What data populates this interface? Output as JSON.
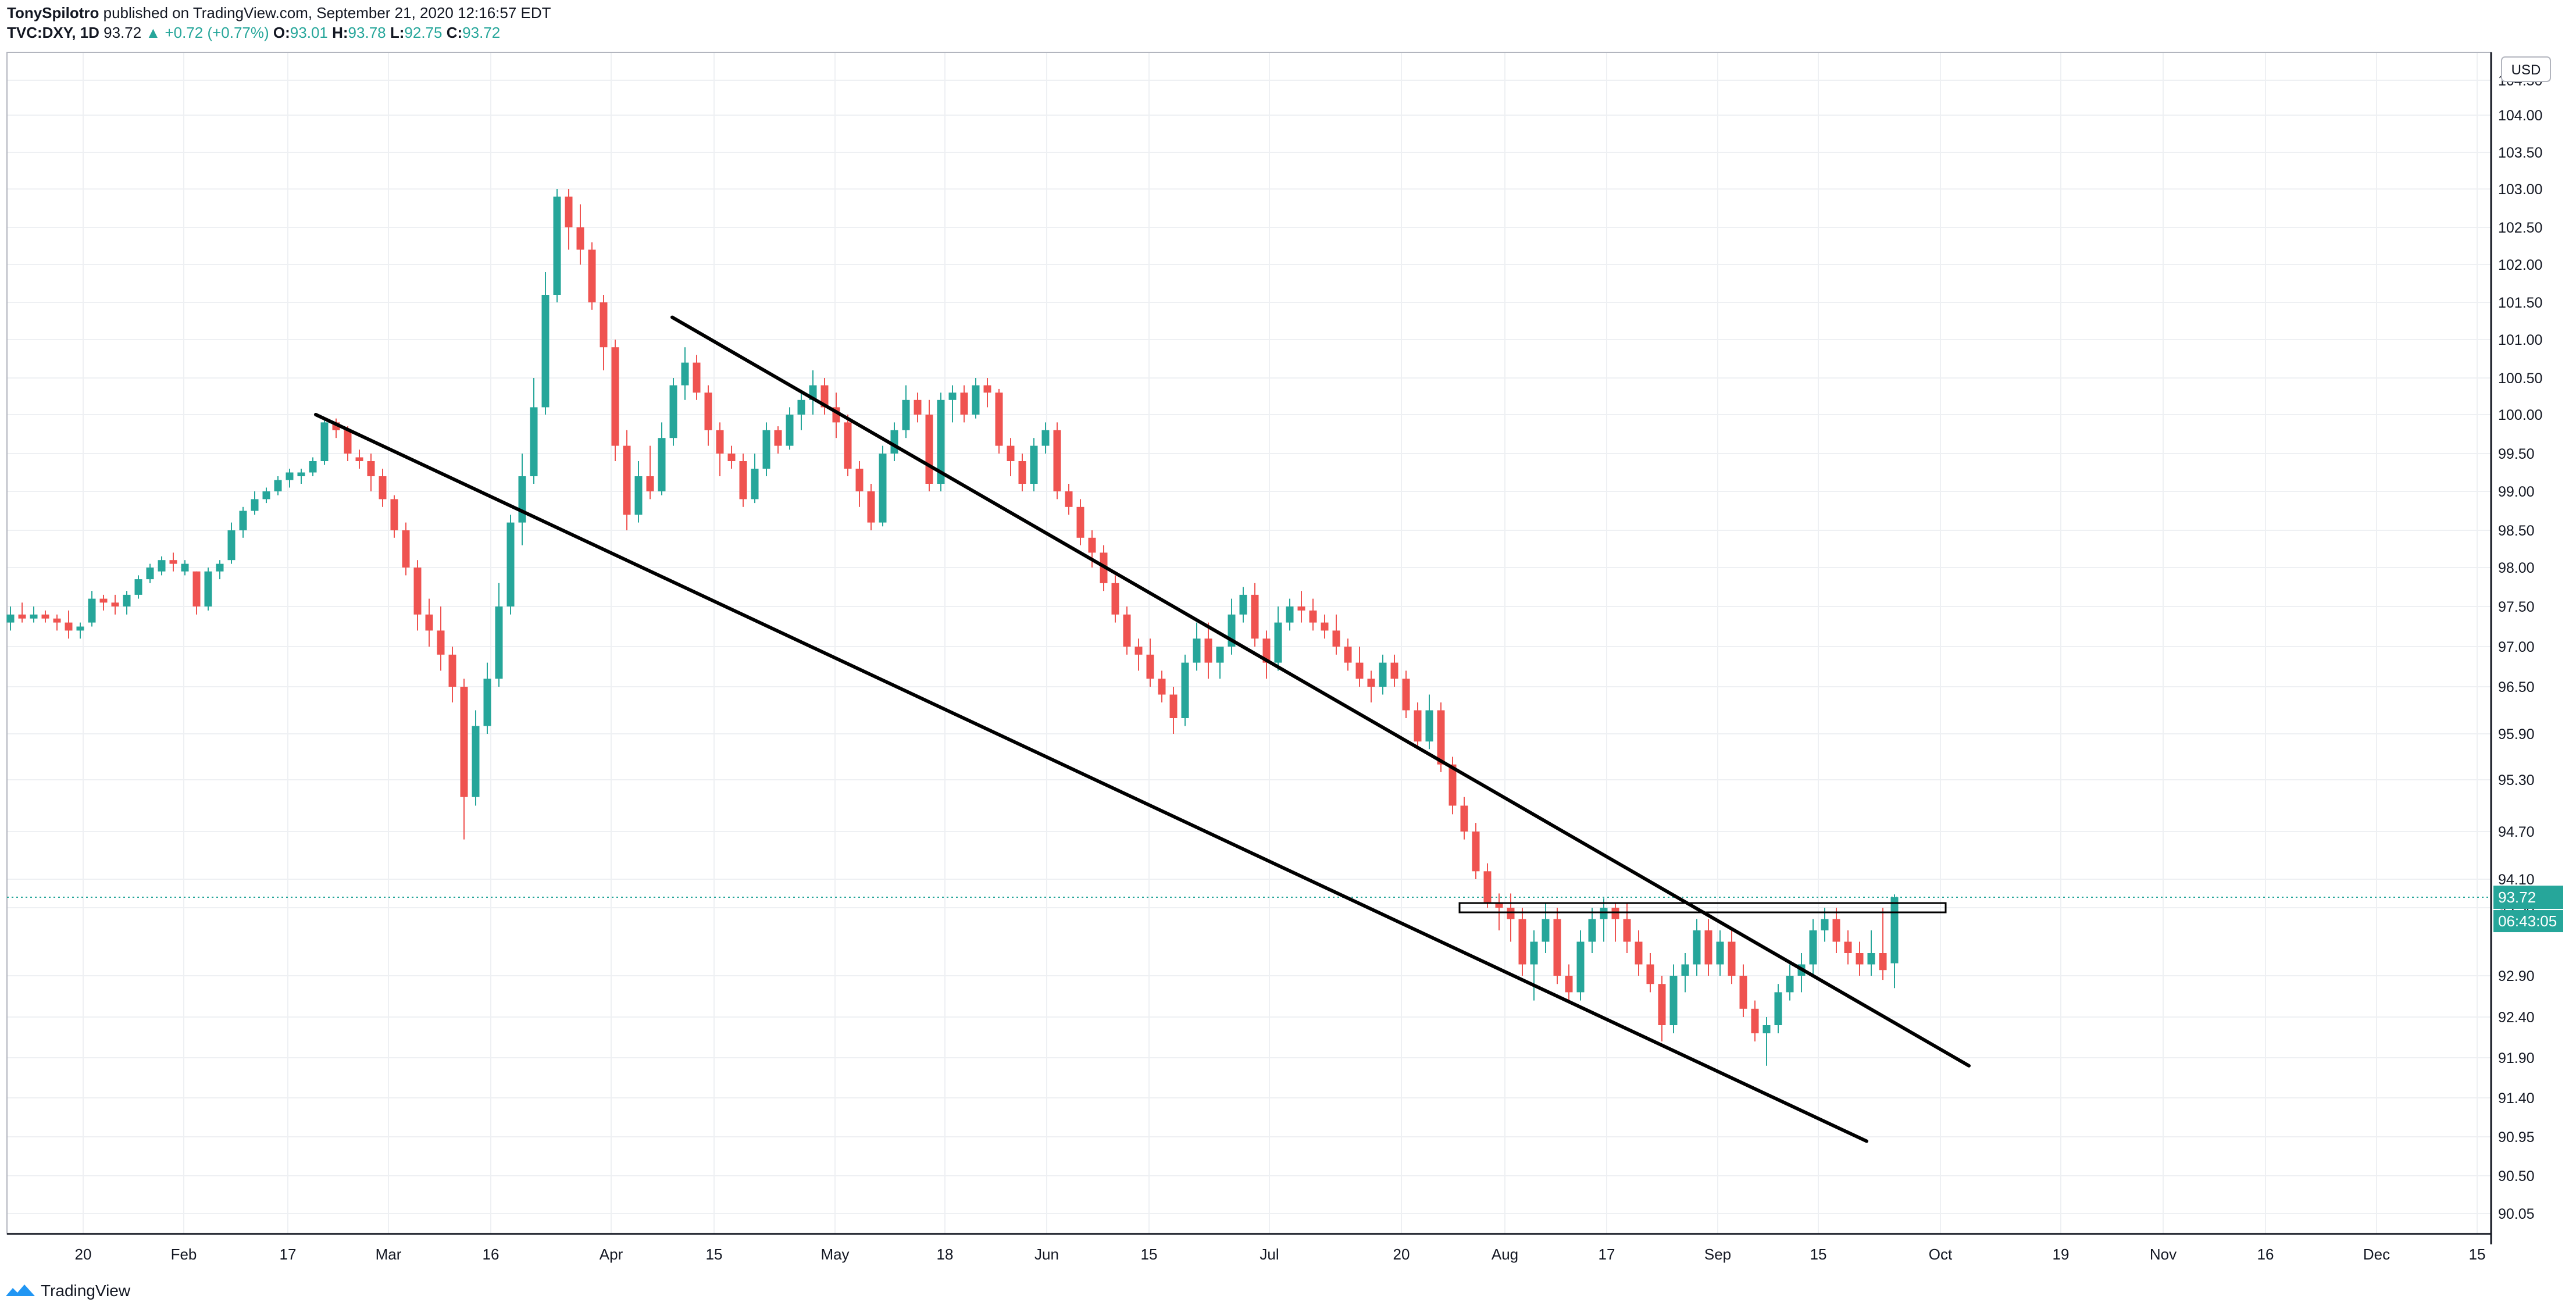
{
  "header": {
    "publisher": "TonySpilotro",
    "published_text": "published on TradingView.com, September 21, 2020 12:16:57 EDT",
    "symbol": "TVC:DXY, 1D",
    "last": "93.72",
    "change": "+0.72 (+0.77%)",
    "o_label": "O:",
    "o_val": "93.01",
    "h_label": "H:",
    "h_val": "93.78",
    "l_label": "L:",
    "l_val": "92.75",
    "c_label": "C:",
    "c_val": "93.72"
  },
  "footer": {
    "brand": "TradingView"
  },
  "colors": {
    "up": "#26a69a",
    "down": "#ef5350",
    "grid": "#eef0f3",
    "line": "#000000",
    "text": "#131722"
  },
  "chart_data": {
    "type": "candlestick",
    "symbol": "TVC:DXY",
    "interval": "1D",
    "currency_label": "USD",
    "last_price_label": "93.72",
    "countdown_label": "06:43:05",
    "y_ticks": [
      "104.50",
      "104.00",
      "103.50",
      "103.00",
      "102.50",
      "102.00",
      "101.50",
      "101.00",
      "100.50",
      "100.00",
      "99.50",
      "99.00",
      "98.50",
      "98.00",
      "97.50",
      "97.00",
      "96.50",
      "95.90",
      "95.30",
      "94.70",
      "94.10",
      "93.50",
      "92.90",
      "92.40",
      "91.90",
      "91.40",
      "90.95",
      "90.50",
      "90.05"
    ],
    "x_ticks": [
      "20",
      "Feb",
      "17",
      "Mar",
      "16",
      "Apr",
      "15",
      "May",
      "18",
      "Jun",
      "15",
      "Jul",
      "20",
      "Aug",
      "17",
      "Sep",
      "15",
      "Oct",
      "19",
      "Nov",
      "16",
      "Dec",
      "15"
    ],
    "x_start_date": "2020-01-07",
    "x_end_date": "2020-12-15",
    "candles": [
      [
        97.3,
        97.5,
        97.2,
        97.4
      ],
      [
        97.4,
        97.55,
        97.3,
        97.35
      ],
      [
        97.35,
        97.5,
        97.3,
        97.4
      ],
      [
        97.4,
        97.45,
        97.3,
        97.35
      ],
      [
        97.35,
        97.4,
        97.2,
        97.3
      ],
      [
        97.3,
        97.45,
        97.1,
        97.2
      ],
      [
        97.2,
        97.3,
        97.1,
        97.25
      ],
      [
        97.3,
        97.7,
        97.25,
        97.6
      ],
      [
        97.6,
        97.65,
        97.45,
        97.55
      ],
      [
        97.55,
        97.65,
        97.4,
        97.5
      ],
      [
        97.5,
        97.7,
        97.4,
        97.65
      ],
      [
        97.65,
        97.9,
        97.6,
        97.85
      ],
      [
        97.85,
        98.05,
        97.8,
        98.0
      ],
      [
        97.95,
        98.15,
        97.9,
        98.1
      ],
      [
        98.1,
        98.2,
        97.95,
        98.05
      ],
      [
        97.95,
        98.1,
        97.9,
        98.05
      ],
      [
        97.95,
        97.95,
        97.4,
        97.5
      ],
      [
        97.5,
        98.0,
        97.45,
        97.95
      ],
      [
        97.95,
        98.1,
        97.85,
        98.05
      ],
      [
        98.1,
        98.6,
        98.05,
        98.5
      ],
      [
        98.5,
        98.8,
        98.4,
        98.75
      ],
      [
        98.75,
        99.0,
        98.7,
        98.9
      ],
      [
        98.9,
        99.05,
        98.85,
        99.0
      ],
      [
        99.0,
        99.2,
        98.95,
        99.15
      ],
      [
        99.15,
        99.3,
        99.05,
        99.25
      ],
      [
        99.2,
        99.3,
        99.1,
        99.25
      ],
      [
        99.25,
        99.45,
        99.2,
        99.4
      ],
      [
        99.4,
        99.95,
        99.35,
        99.9
      ],
      [
        99.9,
        99.95,
        99.7,
        99.8
      ],
      [
        99.8,
        99.85,
        99.4,
        99.5
      ],
      [
        99.45,
        99.55,
        99.3,
        99.4
      ],
      [
        99.4,
        99.5,
        99.0,
        99.2
      ],
      [
        99.2,
        99.3,
        98.8,
        98.9
      ],
      [
        98.9,
        98.95,
        98.4,
        98.5
      ],
      [
        98.5,
        98.6,
        97.9,
        98.0
      ],
      [
        98.0,
        98.1,
        97.2,
        97.4
      ],
      [
        97.4,
        97.6,
        97.0,
        97.2
      ],
      [
        97.2,
        97.5,
        96.7,
        96.9
      ],
      [
        96.9,
        97.0,
        96.3,
        96.5
      ],
      [
        96.5,
        96.6,
        94.6,
        95.1
      ],
      [
        95.1,
        96.2,
        95.0,
        96.0
      ],
      [
        96.0,
        96.8,
        95.9,
        96.6
      ],
      [
        96.6,
        97.8,
        96.5,
        97.5
      ],
      [
        97.5,
        98.7,
        97.4,
        98.6
      ],
      [
        98.6,
        99.5,
        98.3,
        99.2
      ],
      [
        99.2,
        100.5,
        99.1,
        100.1
      ],
      [
        100.1,
        101.9,
        100.0,
        101.6
      ],
      [
        101.6,
        103.0,
        101.5,
        102.9
      ],
      [
        102.9,
        103.0,
        102.2,
        102.5
      ],
      [
        102.5,
        102.8,
        102.0,
        102.2
      ],
      [
        102.2,
        102.3,
        101.4,
        101.5
      ],
      [
        101.5,
        101.6,
        100.6,
        100.9
      ],
      [
        100.9,
        101.0,
        99.4,
        99.6
      ],
      [
        99.6,
        99.8,
        98.5,
        98.7
      ],
      [
        98.7,
        99.4,
        98.6,
        99.2
      ],
      [
        99.2,
        99.6,
        98.9,
        99.0
      ],
      [
        99.0,
        99.9,
        98.95,
        99.7
      ],
      [
        99.7,
        100.5,
        99.6,
        100.4
      ],
      [
        100.4,
        100.9,
        100.2,
        100.7
      ],
      [
        100.7,
        100.8,
        100.2,
        100.3
      ],
      [
        100.3,
        100.4,
        99.6,
        99.8
      ],
      [
        99.8,
        99.9,
        99.2,
        99.5
      ],
      [
        99.5,
        99.6,
        99.3,
        99.4
      ],
      [
        99.4,
        99.5,
        98.8,
        98.9
      ],
      [
        98.9,
        99.5,
        98.85,
        99.3
      ],
      [
        99.3,
        99.9,
        99.2,
        99.8
      ],
      [
        99.8,
        99.85,
        99.5,
        99.6
      ],
      [
        99.6,
        100.1,
        99.55,
        100.0
      ],
      [
        100.0,
        100.3,
        99.8,
        100.2
      ],
      [
        100.2,
        100.6,
        100.0,
        100.4
      ],
      [
        100.4,
        100.5,
        100.0,
        100.1
      ],
      [
        100.1,
        100.3,
        99.7,
        99.9
      ],
      [
        99.9,
        100.0,
        99.2,
        99.3
      ],
      [
        99.3,
        99.4,
        98.8,
        99.0
      ],
      [
        99.0,
        99.1,
        98.5,
        98.6
      ],
      [
        98.6,
        99.6,
        98.55,
        99.5
      ],
      [
        99.5,
        99.9,
        99.4,
        99.8
      ],
      [
        99.8,
        100.4,
        99.7,
        100.2
      ],
      [
        100.2,
        100.3,
        99.9,
        100.0
      ],
      [
        100.0,
        100.2,
        99.0,
        99.1
      ],
      [
        99.1,
        100.3,
        99.0,
        100.2
      ],
      [
        100.2,
        100.4,
        99.9,
        100.3
      ],
      [
        100.3,
        100.4,
        99.9,
        100.0
      ],
      [
        100.0,
        100.5,
        99.95,
        100.4
      ],
      [
        100.4,
        100.5,
        100.1,
        100.3
      ],
      [
        100.3,
        100.35,
        99.5,
        99.6
      ],
      [
        99.6,
        99.7,
        99.2,
        99.4
      ],
      [
        99.4,
        99.5,
        99.0,
        99.1
      ],
      [
        99.1,
        99.7,
        99.0,
        99.6
      ],
      [
        99.6,
        99.9,
        99.5,
        99.8
      ],
      [
        99.8,
        99.9,
        98.9,
        99.0
      ],
      [
        99.0,
        99.1,
        98.7,
        98.8
      ],
      [
        98.8,
        98.9,
        98.3,
        98.4
      ],
      [
        98.4,
        98.5,
        98.0,
        98.2
      ],
      [
        98.2,
        98.3,
        97.7,
        97.8
      ],
      [
        97.8,
        97.9,
        97.3,
        97.4
      ],
      [
        97.4,
        97.5,
        96.9,
        97.0
      ],
      [
        97.0,
        97.1,
        96.7,
        96.9
      ],
      [
        96.9,
        97.1,
        96.5,
        96.6
      ],
      [
        96.6,
        96.7,
        96.3,
        96.4
      ],
      [
        96.4,
        96.5,
        95.9,
        96.1
      ],
      [
        96.1,
        96.9,
        96.0,
        96.8
      ],
      [
        96.8,
        97.3,
        96.7,
        97.1
      ],
      [
        97.1,
        97.3,
        96.6,
        96.8
      ],
      [
        96.8,
        97.0,
        96.6,
        97.0
      ],
      [
        97.0,
        97.6,
        96.9,
        97.4
      ],
      [
        97.4,
        97.75,
        97.3,
        97.65
      ],
      [
        97.65,
        97.8,
        97.0,
        97.1
      ],
      [
        97.1,
        97.2,
        96.6,
        96.8
      ],
      [
        96.8,
        97.5,
        96.7,
        97.3
      ],
      [
        97.3,
        97.6,
        97.2,
        97.5
      ],
      [
        97.5,
        97.7,
        97.3,
        97.45
      ],
      [
        97.45,
        97.6,
        97.2,
        97.3
      ],
      [
        97.3,
        97.4,
        97.1,
        97.2
      ],
      [
        97.2,
        97.4,
        96.9,
        97.0
      ],
      [
        97.0,
        97.1,
        96.7,
        96.8
      ],
      [
        96.8,
        97.0,
        96.5,
        96.6
      ],
      [
        96.6,
        96.7,
        96.3,
        96.5
      ],
      [
        96.5,
        96.9,
        96.4,
        96.8
      ],
      [
        96.8,
        96.9,
        96.5,
        96.6
      ],
      [
        96.6,
        96.7,
        96.1,
        96.2
      ],
      [
        96.2,
        96.3,
        95.7,
        95.8
      ],
      [
        95.8,
        96.4,
        95.7,
        96.2
      ],
      [
        96.2,
        96.3,
        95.4,
        95.5
      ],
      [
        95.5,
        95.6,
        94.9,
        95.0
      ],
      [
        95.0,
        95.1,
        94.6,
        94.7
      ],
      [
        94.7,
        94.8,
        94.1,
        94.2
      ],
      [
        94.2,
        94.3,
        93.5,
        93.6
      ],
      [
        93.6,
        93.8,
        93.3,
        93.5
      ],
      [
        93.5,
        93.8,
        93.2,
        93.4
      ],
      [
        93.4,
        93.5,
        92.9,
        93.0
      ],
      [
        93.0,
        93.3,
        92.6,
        93.2
      ],
      [
        93.2,
        93.6,
        93.1,
        93.4
      ],
      [
        93.4,
        93.5,
        92.8,
        92.9
      ],
      [
        92.9,
        93.0,
        92.6,
        92.7
      ],
      [
        92.7,
        93.3,
        92.6,
        93.2
      ],
      [
        93.2,
        93.5,
        93.1,
        93.4
      ],
      [
        93.4,
        93.7,
        93.2,
        93.5
      ],
      [
        93.5,
        93.6,
        93.2,
        93.4
      ],
      [
        93.4,
        93.6,
        93.1,
        93.2
      ],
      [
        93.2,
        93.3,
        92.9,
        93.0
      ],
      [
        93.0,
        93.1,
        92.7,
        92.8
      ],
      [
        92.8,
        92.9,
        92.1,
        92.3
      ],
      [
        92.3,
        93.0,
        92.2,
        92.9
      ],
      [
        92.9,
        93.1,
        92.7,
        93.0
      ],
      [
        93.0,
        93.4,
        92.9,
        93.3
      ],
      [
        93.3,
        93.4,
        92.9,
        93.0
      ],
      [
        93.0,
        93.3,
        92.9,
        93.2
      ],
      [
        93.2,
        93.3,
        92.8,
        92.9
      ],
      [
        92.9,
        93.0,
        92.4,
        92.5
      ],
      [
        92.5,
        92.6,
        92.1,
        92.2
      ],
      [
        92.2,
        92.4,
        91.8,
        92.3
      ],
      [
        92.3,
        92.8,
        92.2,
        92.7
      ],
      [
        92.7,
        93.0,
        92.6,
        92.9
      ],
      [
        92.9,
        93.1,
        92.7,
        93.0
      ],
      [
        93.0,
        93.4,
        92.9,
        93.3
      ],
      [
        93.3,
        93.5,
        93.2,
        93.4
      ],
      [
        93.4,
        93.5,
        93.1,
        93.2
      ],
      [
        93.2,
        93.3,
        93.0,
        93.1
      ],
      [
        93.1,
        93.2,
        92.9,
        93.0
      ],
      [
        93.0,
        93.3,
        92.9,
        93.1
      ],
      [
        93.1,
        93.5,
        92.85,
        92.95
      ],
      [
        93.01,
        93.78,
        92.75,
        93.72
      ]
    ],
    "lines": [
      {
        "name": "upper-trendline",
        "points": [
          [
            0,
            101.3
          ],
          [
            167,
            91.8
          ]
        ]
      },
      {
        "name": "lower-trendline",
        "points": [
          [
            26,
            100.0
          ],
          [
            157,
            90.9
          ]
        ]
      },
      {
        "name": "horizontal-zone",
        "points": [
          [
            125,
            93.5
          ],
          [
            164,
            93.5
          ]
        ]
      }
    ]
  }
}
